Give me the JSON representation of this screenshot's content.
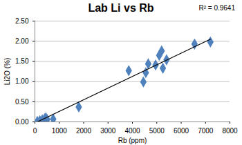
{
  "chart_data": {
    "type": "scatter",
    "title": "Lab Li vs Rb",
    "x_label": "Rb (ppm)",
    "y_label": "Li2O (%)",
    "x": [
      100,
      200,
      300,
      400,
      450,
      500,
      750,
      1800,
      3850,
      4450,
      4550,
      4650,
      4950,
      5100,
      5200,
      5250,
      5400,
      6550,
      7200
    ],
    "values": [
      0.01,
      0.03,
      0.05,
      0.08,
      0.1,
      0.06,
      0.07,
      0.37,
      1.27,
      0.99,
      1.22,
      1.44,
      1.41,
      1.65,
      1.76,
      1.33,
      1.54,
      1.93,
      1.98
    ],
    "color": "#4f81bd",
    "marker": "diamond",
    "trendline": {
      "x": [
        100,
        7200
      ],
      "values": [
        0.0,
        2.05
      ],
      "color": "#000000"
    },
    "annotations": [
      "R² = 0.9641"
    ],
    "xlim": [
      0,
      8000
    ],
    "xticks": [
      0,
      1000,
      2000,
      3000,
      4000,
      5000,
      6000,
      7000,
      8000
    ],
    "ylim": [
      0,
      2.5
    ],
    "yticks": [
      {
        "value": 0,
        "label": "0.00"
      },
      {
        "value": 0.5,
        "label": "0.50"
      },
      {
        "value": 1,
        "label": "1.00"
      },
      {
        "value": 1.5,
        "label": "1.50"
      },
      {
        "value": 2,
        "label": "2.00"
      },
      {
        "value": 2.5,
        "label": "2.50"
      }
    ],
    "grid": true
  }
}
